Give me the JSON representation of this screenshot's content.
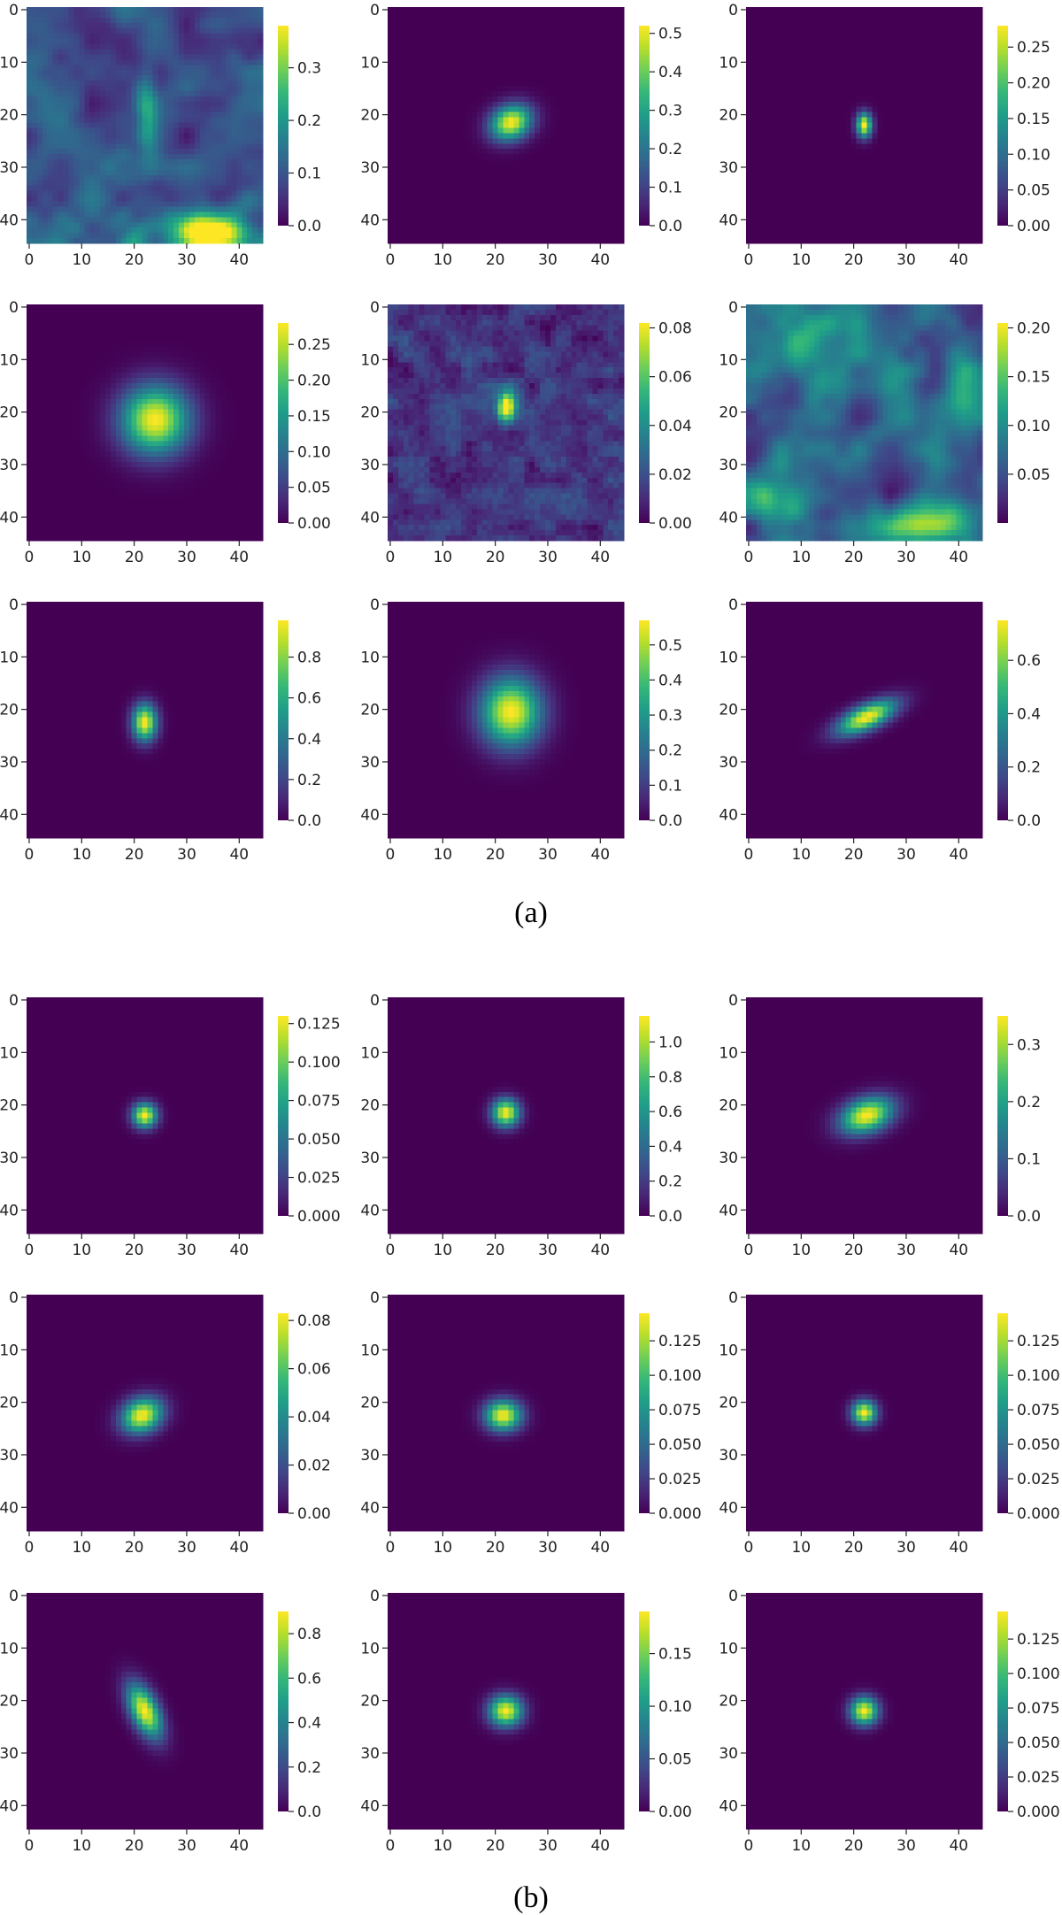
{
  "figure": {
    "subfigure_labels": [
      "(a)",
      "(b)"
    ]
  },
  "colormap": {
    "name": "viridis",
    "stops": [
      "#440154",
      "#482878",
      "#3e4a89",
      "#31688e",
      "#26828e",
      "#1f9e89",
      "#35b779",
      "#6ece58",
      "#b5de2b",
      "#fde725"
    ]
  },
  "chart_data": [
    {
      "type": "heatmap",
      "panel": "a",
      "row": 1,
      "col": 1,
      "pattern": "noisy",
      "xlim": [
        0,
        44
      ],
      "ylim": [
        0,
        44
      ],
      "x_ticks": [
        "0",
        "10",
        "20",
        "30",
        "40"
      ],
      "y_ticks": [
        "0",
        "10",
        "20",
        "30",
        "40"
      ],
      "colorbar_range": [
        0,
        0.38
      ],
      "colorbar_ticks": [
        "0.0",
        "0.1",
        "0.2",
        "0.3"
      ]
    },
    {
      "type": "heatmap",
      "panel": "a",
      "row": 1,
      "col": 2,
      "pattern": "blob",
      "center": [
        23,
        21.5
      ],
      "sigma": [
        2.8,
        2.2
      ],
      "angle": -25,
      "xlim": [
        0,
        44
      ],
      "ylim": [
        0,
        44
      ],
      "x_ticks": [
        "0",
        "10",
        "20",
        "30",
        "40"
      ],
      "y_ticks": [
        "0",
        "10",
        "20",
        "30",
        "40"
      ],
      "colorbar_range": [
        0,
        0.52
      ],
      "colorbar_ticks": [
        "0.0",
        "0.1",
        "0.2",
        "0.3",
        "0.4",
        "0.5"
      ]
    },
    {
      "type": "heatmap",
      "panel": "a",
      "row": 1,
      "col": 3,
      "pattern": "blob",
      "center": [
        22,
        22
      ],
      "sigma": [
        1.0,
        1.6
      ],
      "angle": 0,
      "xlim": [
        0,
        44
      ],
      "ylim": [
        0,
        44
      ],
      "x_ticks": [
        "0",
        "10",
        "20",
        "30",
        "40"
      ],
      "y_ticks": [
        "0",
        "10",
        "20",
        "30",
        "40"
      ],
      "colorbar_range": [
        0,
        0.28
      ],
      "colorbar_ticks": [
        "0.00",
        "0.05",
        "0.10",
        "0.15",
        "0.20",
        "0.25"
      ]
    },
    {
      "type": "heatmap",
      "panel": "a",
      "row": 2,
      "col": 1,
      "pattern": "blob",
      "center": [
        24,
        21.5
      ],
      "sigma": [
        4.5,
        4.5
      ],
      "angle": 0,
      "xlim": [
        0,
        44
      ],
      "ylim": [
        0,
        44
      ],
      "x_ticks": [
        "0",
        "10",
        "20",
        "30",
        "40"
      ],
      "y_ticks": [
        "0",
        "10",
        "20",
        "30",
        "40"
      ],
      "colorbar_range": [
        0,
        0.28
      ],
      "colorbar_ticks": [
        "0.00",
        "0.05",
        "0.10",
        "0.15",
        "0.20",
        "0.25"
      ]
    },
    {
      "type": "heatmap",
      "panel": "a",
      "row": 2,
      "col": 2,
      "pattern": "noisy_blob",
      "center": [
        22,
        19
      ],
      "sigma": [
        1.2,
        2.0
      ],
      "angle": 0,
      "xlim": [
        0,
        44
      ],
      "ylim": [
        0,
        44
      ],
      "x_ticks": [
        "0",
        "10",
        "20",
        "30",
        "40"
      ],
      "y_ticks": [
        "0",
        "10",
        "20",
        "30",
        "40"
      ],
      "colorbar_range": [
        0,
        0.082
      ],
      "colorbar_ticks": [
        "0.00",
        "0.02",
        "0.04",
        "0.06",
        "0.08"
      ]
    },
    {
      "type": "heatmap",
      "panel": "a",
      "row": 2,
      "col": 3,
      "pattern": "noisy_bright",
      "xlim": [
        0,
        44
      ],
      "ylim": [
        0,
        44
      ],
      "x_ticks": [
        "0",
        "10",
        "20",
        "30",
        "40"
      ],
      "y_ticks": [
        "0",
        "10",
        "20",
        "30",
        "40"
      ],
      "colorbar_range": [
        0,
        0.205
      ],
      "colorbar_ticks": [
        "0.05",
        "0.10",
        "0.15",
        "0.20"
      ]
    },
    {
      "type": "heatmap",
      "panel": "a",
      "row": 3,
      "col": 1,
      "pattern": "blob",
      "center": [
        22,
        22.5
      ],
      "sigma": [
        1.6,
        2.4
      ],
      "angle": 0,
      "xlim": [
        0,
        44
      ],
      "ylim": [
        0,
        44
      ],
      "x_ticks": [
        "0",
        "10",
        "20",
        "30",
        "40"
      ],
      "y_ticks": [
        "0",
        "10",
        "20",
        "30",
        "40"
      ],
      "colorbar_range": [
        0,
        0.98
      ],
      "colorbar_ticks": [
        "0.0",
        "0.2",
        "0.4",
        "0.6",
        "0.8"
      ]
    },
    {
      "type": "heatmap",
      "panel": "a",
      "row": 3,
      "col": 2,
      "pattern": "blob",
      "center": [
        23,
        20.5
      ],
      "sigma": [
        4.0,
        4.5
      ],
      "angle": 0,
      "xlim": [
        0,
        44
      ],
      "ylim": [
        0,
        44
      ],
      "x_ticks": [
        "0",
        "10",
        "20",
        "30",
        "40"
      ],
      "y_ticks": [
        "0",
        "10",
        "20",
        "30",
        "40"
      ],
      "colorbar_range": [
        0,
        0.57
      ],
      "colorbar_ticks": [
        "0.0",
        "0.1",
        "0.2",
        "0.3",
        "0.4",
        "0.5"
      ]
    },
    {
      "type": "heatmap",
      "panel": "a",
      "row": 3,
      "col": 3,
      "pattern": "blob",
      "center": [
        22.5,
        21.5
      ],
      "sigma": [
        4.2,
        1.6
      ],
      "angle": -25,
      "xlim": [
        0,
        44
      ],
      "ylim": [
        0,
        44
      ],
      "x_ticks": [
        "0",
        "10",
        "20",
        "30",
        "40"
      ],
      "y_ticks": [
        "0",
        "10",
        "20",
        "30",
        "40"
      ],
      "colorbar_range": [
        0,
        0.75
      ],
      "colorbar_ticks": [
        "0.0",
        "0.2",
        "0.4",
        "0.6"
      ]
    },
    {
      "type": "heatmap",
      "panel": "b",
      "row": 1,
      "col": 1,
      "pattern": "blob",
      "center": [
        22,
        22
      ],
      "sigma": [
        1.6,
        1.6
      ],
      "angle": 0,
      "xlim": [
        0,
        44
      ],
      "ylim": [
        0,
        44
      ],
      "x_ticks": [
        "0",
        "10",
        "20",
        "30",
        "40"
      ],
      "y_ticks": [
        "0",
        "10",
        "20",
        "30",
        "40"
      ],
      "colorbar_range": [
        0,
        0.13
      ],
      "colorbar_ticks": [
        "0.000",
        "0.025",
        "0.050",
        "0.075",
        "0.100",
        "0.125"
      ]
    },
    {
      "type": "heatmap",
      "panel": "b",
      "row": 1,
      "col": 2,
      "pattern": "blob",
      "center": [
        22,
        21.5
      ],
      "sigma": [
        1.8,
        1.8
      ],
      "angle": 0,
      "xlim": [
        0,
        44
      ],
      "ylim": [
        0,
        44
      ],
      "x_ticks": [
        "0",
        "10",
        "20",
        "30",
        "40"
      ],
      "y_ticks": [
        "0",
        "10",
        "20",
        "30",
        "40"
      ],
      "colorbar_range": [
        0,
        1.15
      ],
      "colorbar_ticks": [
        "0.0",
        "0.2",
        "0.4",
        "0.6",
        "0.8",
        "1.0"
      ]
    },
    {
      "type": "heatmap",
      "panel": "b",
      "row": 1,
      "col": 3,
      "pattern": "blob",
      "center": [
        22.5,
        22
      ],
      "sigma": [
        3.6,
        2.2
      ],
      "angle": -20,
      "xlim": [
        0,
        44
      ],
      "ylim": [
        0,
        44
      ],
      "x_ticks": [
        "0",
        "10",
        "20",
        "30",
        "40"
      ],
      "y_ticks": [
        "0",
        "10",
        "20",
        "30",
        "40"
      ],
      "colorbar_range": [
        0,
        0.35
      ],
      "colorbar_ticks": [
        "0.0",
        "0.1",
        "0.2",
        "0.3"
      ]
    },
    {
      "type": "heatmap",
      "panel": "b",
      "row": 2,
      "col": 1,
      "pattern": "blob",
      "center": [
        21.5,
        22.5
      ],
      "sigma": [
        2.8,
        2.2
      ],
      "angle": -25,
      "xlim": [
        0,
        44
      ],
      "ylim": [
        0,
        44
      ],
      "x_ticks": [
        "0",
        "10",
        "20",
        "30",
        "40"
      ],
      "y_ticks": [
        "0",
        "10",
        "20",
        "30",
        "40"
      ],
      "colorbar_range": [
        0,
        0.083
      ],
      "colorbar_ticks": [
        "0.00",
        "0.02",
        "0.04",
        "0.06",
        "0.08"
      ]
    },
    {
      "type": "heatmap",
      "panel": "b",
      "row": 2,
      "col": 2,
      "pattern": "blob",
      "center": [
        21.5,
        22.5
      ],
      "sigma": [
        2.4,
        2.0
      ],
      "angle": 0,
      "xlim": [
        0,
        44
      ],
      "ylim": [
        0,
        44
      ],
      "x_ticks": [
        "0",
        "10",
        "20",
        "30",
        "40"
      ],
      "y_ticks": [
        "0",
        "10",
        "20",
        "30",
        "40"
      ],
      "colorbar_range": [
        0,
        0.145
      ],
      "colorbar_ticks": [
        "0.000",
        "0.025",
        "0.050",
        "0.075",
        "0.100",
        "0.125"
      ]
    },
    {
      "type": "heatmap",
      "panel": "b",
      "row": 2,
      "col": 3,
      "pattern": "blob",
      "center": [
        22,
        22
      ],
      "sigma": [
        1.6,
        1.6
      ],
      "angle": 0,
      "xlim": [
        0,
        44
      ],
      "ylim": [
        0,
        44
      ],
      "x_ticks": [
        "0",
        "10",
        "20",
        "30",
        "40"
      ],
      "y_ticks": [
        "0",
        "10",
        "20",
        "30",
        "40"
      ],
      "colorbar_range": [
        0,
        0.145
      ],
      "colorbar_ticks": [
        "0.000",
        "0.025",
        "0.050",
        "0.075",
        "0.100",
        "0.125"
      ]
    },
    {
      "type": "heatmap",
      "panel": "b",
      "row": 3,
      "col": 1,
      "pattern": "blob",
      "center": [
        22,
        22
      ],
      "sigma": [
        3.8,
        1.8
      ],
      "angle": 65,
      "xlim": [
        0,
        44
      ],
      "ylim": [
        0,
        44
      ],
      "x_ticks": [
        "0",
        "10",
        "20",
        "30",
        "40"
      ],
      "y_ticks": [
        "0",
        "10",
        "20",
        "30",
        "40"
      ],
      "colorbar_range": [
        0,
        0.9
      ],
      "colorbar_ticks": [
        "0.0",
        "0.2",
        "0.4",
        "0.6",
        "0.8"
      ]
    },
    {
      "type": "heatmap",
      "panel": "b",
      "row": 3,
      "col": 2,
      "pattern": "blob",
      "center": [
        22,
        22
      ],
      "sigma": [
        2.2,
        2.0
      ],
      "angle": 0,
      "xlim": [
        0,
        44
      ],
      "ylim": [
        0,
        44
      ],
      "x_ticks": [
        "0",
        "10",
        "20",
        "30",
        "40"
      ],
      "y_ticks": [
        "0",
        "10",
        "20",
        "30",
        "40"
      ],
      "colorbar_range": [
        0,
        0.19
      ],
      "colorbar_ticks": [
        "0.00",
        "0.05",
        "0.10",
        "0.15"
      ]
    },
    {
      "type": "heatmap",
      "panel": "b",
      "row": 3,
      "col": 3,
      "pattern": "blob",
      "center": [
        22,
        22
      ],
      "sigma": [
        1.8,
        1.8
      ],
      "angle": 0,
      "xlim": [
        0,
        44
      ],
      "ylim": [
        0,
        44
      ],
      "x_ticks": [
        "0",
        "10",
        "20",
        "30",
        "40"
      ],
      "y_ticks": [
        "0",
        "10",
        "20",
        "30",
        "40"
      ],
      "colorbar_range": [
        0,
        0.145
      ],
      "colorbar_ticks": [
        "0.000",
        "0.025",
        "0.050",
        "0.075",
        "0.100",
        "0.125"
      ]
    }
  ]
}
